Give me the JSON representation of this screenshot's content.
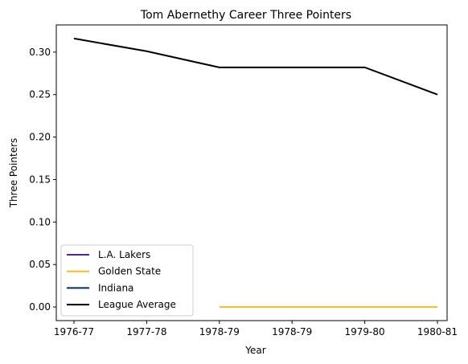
{
  "chart_data": {
    "type": "line",
    "title": "Tom Abernethy Career Three Pointers",
    "xlabel": "Year",
    "ylabel": "Three Pointers",
    "categories": [
      "1976-77",
      "1977-78",
      "1978-79",
      "1978-79",
      "1979-80",
      "1980-81"
    ],
    "ylim": [
      -0.016,
      0.332
    ],
    "yticks": [
      0.0,
      0.05,
      0.1,
      0.15,
      0.2,
      0.25,
      0.3
    ],
    "yticklabels": [
      "0.00",
      "0.05",
      "0.10",
      "0.15",
      "0.20",
      "0.25",
      "0.30"
    ],
    "grid": false,
    "legend_position": "lower-left",
    "series": [
      {
        "name": "L.A. Lakers",
        "color": "#552583",
        "x": [],
        "values": []
      },
      {
        "name": "Golden State",
        "color": "#FDB927",
        "x": [
          2,
          3,
          4,
          5
        ],
        "values": [
          0.0,
          0.0,
          0.0,
          0.0
        ]
      },
      {
        "name": "Indiana",
        "color": "#002D62",
        "x": [],
        "values": []
      },
      {
        "name": "League Average",
        "color": "#000000",
        "x": [
          0,
          1,
          2,
          3,
          4,
          5
        ],
        "values": [
          0.316,
          0.301,
          0.282,
          0.282,
          0.282,
          0.25
        ]
      }
    ]
  }
}
